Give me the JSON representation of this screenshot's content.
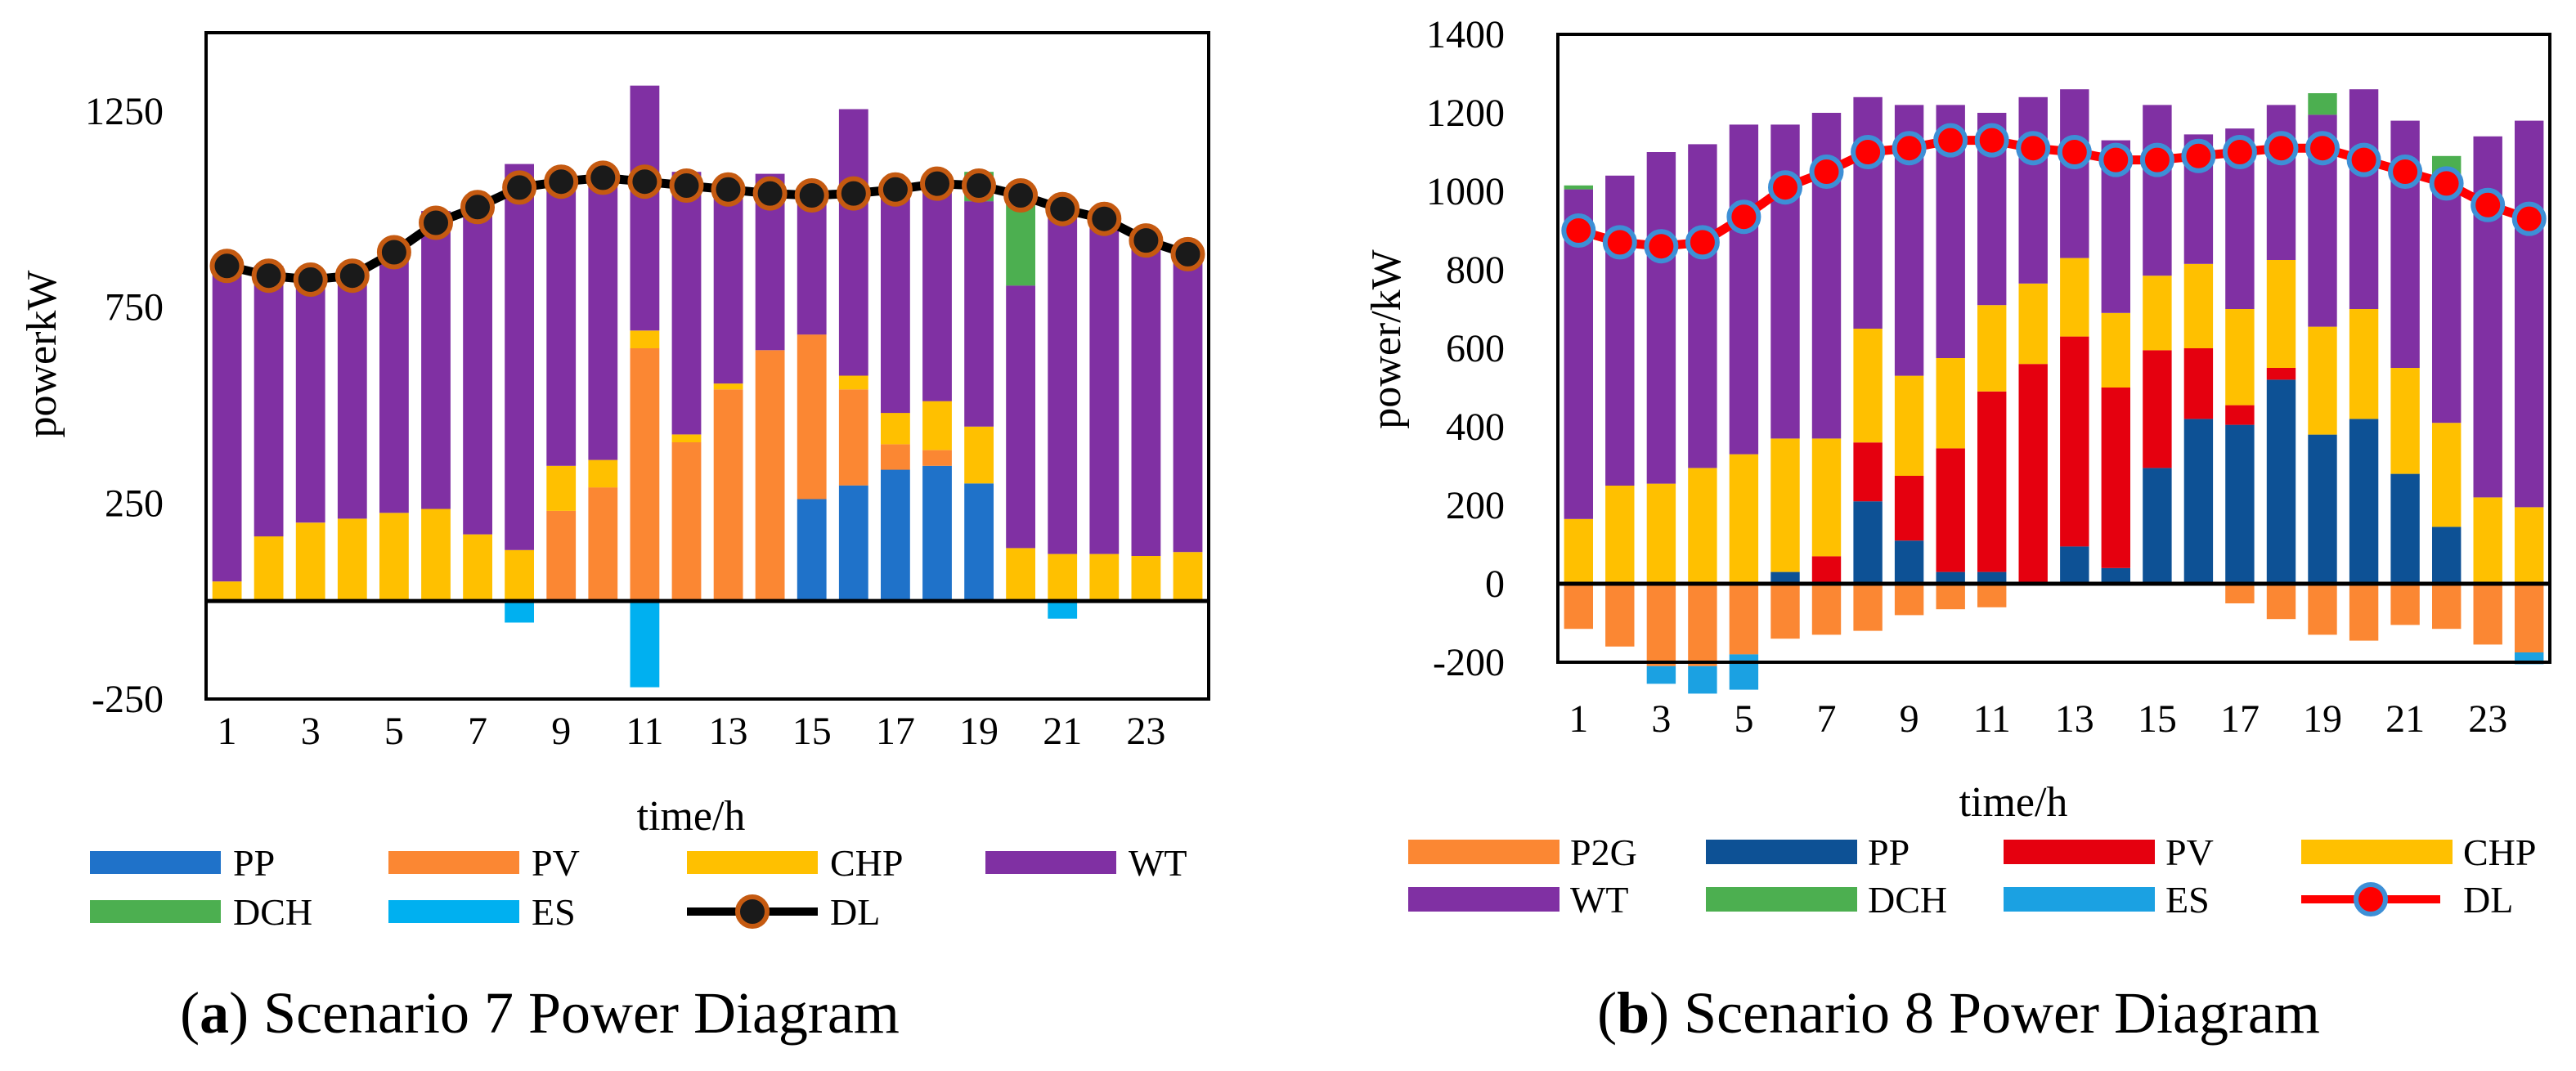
{
  "panels": [
    {
      "caption_label": "a",
      "caption_text": "Scenario 7 Power Diagram",
      "chart_data": {
        "type": "bar",
        "stacked": true,
        "title": "",
        "xlabel": "time/h",
        "ylabel": "powerkW",
        "ylim": [
          -250,
          1450
        ],
        "yticks": [
          "-250",
          "250",
          "750",
          "1250"
        ],
        "categories": [
          "1",
          "2",
          "3",
          "4",
          "5",
          "6",
          "7",
          "8",
          "9",
          "10",
          "11",
          "12",
          "13",
          "14",
          "15",
          "16",
          "17",
          "18",
          "19",
          "20",
          "21",
          "22",
          "23",
          "24"
        ],
        "xtick_labels": [
          "1",
          "3",
          "5",
          "7",
          "9",
          "11",
          "13",
          "15",
          "17",
          "19",
          "21",
          "23"
        ],
        "series": [
          {
            "name": "PP",
            "color": "#1f72c9",
            "values": [
              0,
              0,
              0,
              0,
              0,
              0,
              0,
              0,
              0,
              0,
              0,
              0,
              0,
              0,
              260,
              295,
              335,
              345,
              300,
              0,
              0,
              0,
              0,
              0
            ]
          },
          {
            "name": "PV",
            "color": "#fb8733",
            "values": [
              0,
              0,
              0,
              0,
              0,
              0,
              0,
              0,
              230,
              290,
              645,
              405,
              540,
              640,
              420,
              245,
              65,
              40,
              0,
              0,
              0,
              0,
              0,
              0
            ]
          },
          {
            "name": "CHP",
            "color": "#ffc000",
            "values": [
              50,
              165,
              200,
              210,
              225,
              235,
              170,
              130,
              115,
              70,
              45,
              20,
              15,
              0,
              0,
              35,
              80,
              125,
              145,
              135,
              120,
              120,
              115,
              125
            ]
          },
          {
            "name": "WT",
            "color": "#8030a3",
            "values": [
              820,
              690,
              620,
              635,
              675,
              760,
              840,
              985,
              745,
              715,
              625,
              670,
              490,
              450,
              350,
              680,
              555,
              555,
              575,
              670,
              895,
              865,
              815,
              770
            ]
          },
          {
            "name": "DCH",
            "color": "#4caf50",
            "values": [
              0,
              0,
              0,
              0,
              0,
              0,
              0,
              0,
              0,
              0,
              0,
              0,
              0,
              0,
              0,
              0,
              0,
              0,
              75,
              220,
              0,
              0,
              0,
              0
            ]
          },
          {
            "name": "ES",
            "color": "#00b0f0",
            "values": [
              0,
              0,
              0,
              0,
              0,
              0,
              0,
              -55,
              0,
              0,
              -220,
              0,
              0,
              0,
              0,
              0,
              0,
              0,
              0,
              0,
              -45,
              0,
              0,
              0
            ]
          }
        ],
        "line": {
          "name": "DL",
          "line_color": "#000000",
          "marker_color": "#1a1a1a",
          "marker_edge": "#c55a11",
          "values": [
            855,
            830,
            820,
            830,
            890,
            965,
            1005,
            1055,
            1070,
            1080,
            1070,
            1060,
            1050,
            1040,
            1035,
            1040,
            1050,
            1065,
            1060,
            1035,
            1000,
            975,
            920,
            885
          ]
        },
        "legend_order": [
          "PP",
          "PV",
          "CHP",
          "WT",
          "DCH",
          "ES",
          "DL"
        ]
      }
    },
    {
      "caption_label": "b",
      "caption_text": "Scenario 8 Power Diagram",
      "chart_data": {
        "type": "bar",
        "stacked": true,
        "title": "",
        "xlabel": "time/h",
        "ylabel": "power/kW",
        "ylim": [
          -200,
          1400
        ],
        "yticks": [
          "-200",
          "0",
          "200",
          "400",
          "600",
          "800",
          "1000",
          "1200",
          "1400"
        ],
        "categories": [
          "1",
          "2",
          "3",
          "4",
          "5",
          "6",
          "7",
          "8",
          "9",
          "10",
          "11",
          "12",
          "13",
          "14",
          "15",
          "16",
          "17",
          "18",
          "19",
          "20",
          "21",
          "22",
          "23",
          "24"
        ],
        "xtick_labels": [
          "1",
          "3",
          "5",
          "7",
          "9",
          "11",
          "13",
          "15",
          "17",
          "19",
          "21",
          "23"
        ],
        "series": [
          {
            "name": "P2G",
            "color": "#fb8733",
            "values": [
              -115,
              -160,
              -210,
              -210,
              -180,
              -140,
              -130,
              -120,
              -80,
              -65,
              -60,
              -5,
              0,
              0,
              0,
              0,
              -50,
              -90,
              -130,
              -145,
              -105,
              -115,
              -155,
              -175
            ]
          },
          {
            "name": "PP",
            "color": "#0d5195",
            "values": [
              0,
              0,
              0,
              0,
              0,
              30,
              0,
              210,
              110,
              30,
              30,
              0,
              95,
              40,
              295,
              420,
              405,
              520,
              380,
              420,
              280,
              145,
              0,
              0
            ]
          },
          {
            "name": "PV",
            "color": "#e5000f",
            "values": [
              0,
              0,
              0,
              0,
              0,
              0,
              70,
              150,
              165,
              315,
              460,
              560,
              535,
              460,
              300,
              180,
              50,
              30,
              0,
              0,
              0,
              0,
              0,
              0
            ]
          },
          {
            "name": "CHP",
            "color": "#ffc000",
            "values": [
              165,
              250,
              255,
              295,
              330,
              340,
              300,
              290,
              255,
              230,
              220,
              205,
              200,
              190,
              190,
              215,
              245,
              275,
              275,
              280,
              270,
              265,
              220,
              195
            ]
          },
          {
            "name": "WT",
            "color": "#8030a3",
            "values": [
              840,
              790,
              845,
              825,
              840,
              800,
              830,
              590,
              690,
              645,
              490,
              475,
              430,
              440,
              435,
              330,
              460,
              395,
              540,
              560,
              630,
              615,
              920,
              985
            ]
          },
          {
            "name": "DCH",
            "color": "#4caf50",
            "values": [
              10,
              0,
              0,
              0,
              0,
              0,
              0,
              0,
              0,
              0,
              0,
              0,
              0,
              0,
              0,
              0,
              0,
              0,
              55,
              0,
              0,
              65,
              0,
              0
            ]
          },
          {
            "name": "ES",
            "color": "#1ba1e2",
            "values": [
              0,
              0,
              -45,
              -70,
              -90,
              0,
              0,
              0,
              0,
              0,
              0,
              0,
              0,
              0,
              0,
              0,
              0,
              0,
              0,
              0,
              0,
              0,
              0,
              -30
            ]
          }
        ],
        "line": {
          "name": "DL",
          "line_color": "#ff0000",
          "marker_color": "#ff0000",
          "marker_edge": "#3d8fd6",
          "values": [
            900,
            870,
            860,
            870,
            935,
            1010,
            1050,
            1100,
            1110,
            1130,
            1130,
            1110,
            1100,
            1080,
            1080,
            1090,
            1100,
            1110,
            1110,
            1080,
            1050,
            1020,
            965,
            930
          ]
        },
        "legend_order": [
          "P2G",
          "PP",
          "PV",
          "CHP",
          "WT",
          "DCH",
          "ES",
          "DL"
        ]
      }
    }
  ]
}
